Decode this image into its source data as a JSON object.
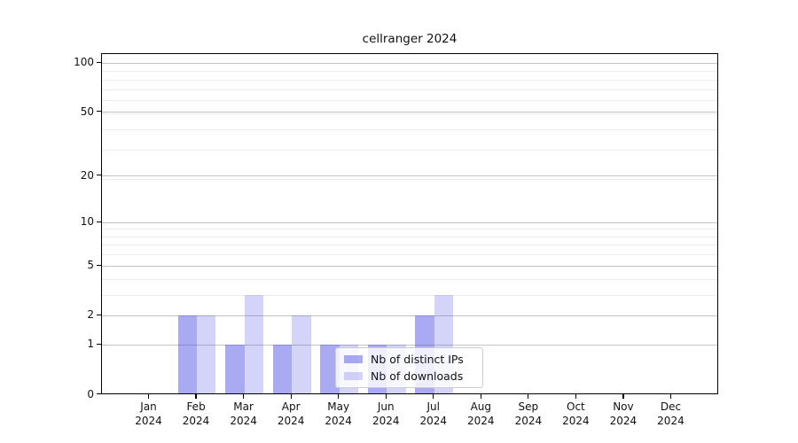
{
  "chart_data": {
    "type": "bar",
    "title": "cellranger 2024",
    "scale": "log10(value+1)",
    "categories": [
      "Jan",
      "Feb",
      "Mar",
      "Apr",
      "May",
      "Jun",
      "Jul",
      "Aug",
      "Sep",
      "Oct",
      "Nov",
      "Dec"
    ],
    "x_year": "2024",
    "series": [
      {
        "name": "Nb of distinct IPs",
        "color": "rgba(85,85,230,0.5)",
        "values": [
          0,
          2,
          1,
          1,
          1,
          1,
          2,
          0,
          0,
          0,
          0,
          0
        ]
      },
      {
        "name": "Nb of downloads",
        "color": "rgba(85,85,230,0.25)",
        "values": [
          0,
          2,
          3,
          2,
          1,
          1,
          3,
          0,
          0,
          0,
          0,
          0
        ]
      }
    ],
    "y_ticks": [
      0,
      1,
      2,
      5,
      10,
      20,
      50,
      100
    ],
    "y_tick_labels": [
      "0",
      "1",
      "2",
      "5",
      "10",
      "20",
      "50",
      "100"
    ],
    "minor_grid_values": [
      3,
      4,
      6,
      7,
      8,
      9,
      19,
      29,
      39,
      49,
      59,
      69,
      79,
      89
    ],
    "ylim": [
      0,
      113
    ],
    "xlim_months": [
      -1,
      12
    ],
    "legend_position": "lower center",
    "colors": {
      "major_grid": "#c3c3c3",
      "minor_grid": "#ececec",
      "axis": "#000000",
      "legend_border": "#cccccc",
      "text": "#111111"
    }
  }
}
